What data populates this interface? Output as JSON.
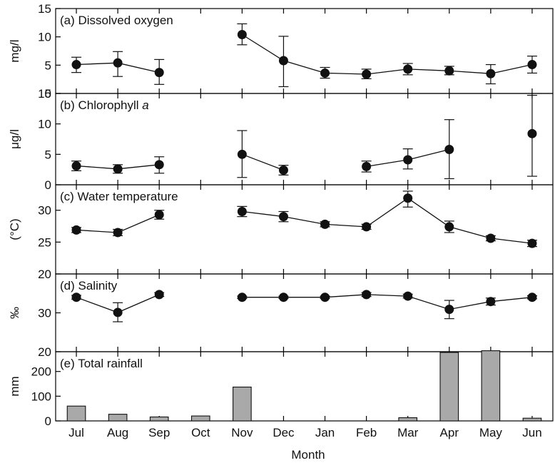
{
  "chart_data": {
    "type": "multi-panel",
    "xlabel": "Month",
    "months": [
      "Jul",
      "Aug",
      "Sep",
      "Oct",
      "Nov",
      "Dec",
      "Jan",
      "Feb",
      "Mar",
      "Apr",
      "May",
      "Jun"
    ],
    "panels": [
      {
        "id": "a",
        "type": "line",
        "title_prefix": "(a) Dissolved oxygen",
        "title_italic": "",
        "ylabel": "mg/l",
        "ylim": [
          0,
          15
        ],
        "yticks": [
          0,
          5,
          10,
          15
        ],
        "segments": [
          [
            0,
            1,
            2
          ],
          [
            4,
            5,
            6,
            7,
            8,
            9,
            10,
            11
          ]
        ],
        "values": [
          5.1,
          5.4,
          3.7,
          null,
          10.4,
          5.8,
          3.6,
          3.4,
          4.3,
          4.0,
          3.5,
          5.1
        ],
        "err_low": [
          3.7,
          3.0,
          1.6,
          null,
          8.6,
          1.2,
          2.7,
          2.6,
          3.3,
          3.3,
          1.7,
          3.6
        ],
        "err_high": [
          6.4,
          7.4,
          6.0,
          null,
          12.3,
          10.1,
          4.6,
          4.3,
          5.3,
          4.8,
          5.1,
          6.6
        ]
      },
      {
        "id": "b",
        "type": "line",
        "title_prefix": "(b) Chlorophyll ",
        "title_italic": "a",
        "ylabel": "μg/l",
        "ylim": [
          0,
          15
        ],
        "yticks": [
          0,
          5,
          10,
          15
        ],
        "segments": [
          [
            0,
            1,
            2
          ],
          [
            4,
            5
          ],
          [
            7,
            8,
            9
          ]
        ],
        "values": [
          3.1,
          2.6,
          3.3,
          null,
          5.0,
          2.4,
          null,
          3.0,
          4.1,
          5.8,
          null,
          8.4
        ],
        "err_low": [
          2.3,
          1.9,
          1.9,
          null,
          1.2,
          1.6,
          null,
          2.1,
          2.6,
          1.0,
          null,
          1.4
        ],
        "err_high": [
          3.9,
          3.3,
          4.6,
          null,
          8.9,
          3.2,
          null,
          3.9,
          5.9,
          10.7,
          null,
          14.7
        ]
      },
      {
        "id": "c",
        "type": "line",
        "title_prefix": "(c) Water temperature",
        "title_italic": "",
        "ylabel": "(°C)",
        "ylim": [
          20,
          34
        ],
        "yticks": [
          20,
          25,
          30
        ],
        "segments": [
          [
            0,
            1,
            2
          ],
          [
            4,
            5,
            6,
            7,
            8,
            9,
            10,
            11
          ]
        ],
        "values": [
          26.9,
          26.5,
          29.3,
          null,
          29.8,
          29.0,
          27.8,
          27.4,
          31.9,
          27.4,
          25.6,
          24.8
        ],
        "err_low": [
          26.5,
          26.0,
          28.6,
          null,
          29.0,
          28.2,
          27.4,
          27.0,
          30.5,
          26.5,
          25.2,
          24.3
        ],
        "err_high": [
          27.3,
          27.0,
          30.0,
          null,
          30.6,
          29.8,
          28.2,
          27.8,
          33.0,
          28.3,
          26.0,
          25.3
        ]
      },
      {
        "id": "d",
        "type": "line",
        "title_prefix": "(d) Salinity",
        "title_italic": "",
        "ylabel": "‰",
        "ylim": [
          20,
          40
        ],
        "yticks": [
          20,
          30
        ],
        "segments": [
          [
            0,
            1,
            2
          ],
          [
            4,
            5,
            6,
            7,
            8,
            9,
            10,
            11
          ]
        ],
        "values": [
          34.0,
          30.1,
          34.7,
          null,
          34.0,
          34.0,
          34.0,
          34.7,
          34.3,
          30.9,
          32.9,
          34.0
        ],
        "err_low": [
          33.5,
          27.7,
          34.2,
          null,
          33.7,
          33.7,
          33.7,
          34.2,
          33.8,
          28.5,
          32.0,
          33.6
        ],
        "err_high": [
          34.5,
          32.6,
          35.2,
          null,
          34.3,
          34.3,
          34.3,
          35.2,
          34.8,
          33.2,
          33.8,
          34.4
        ]
      },
      {
        "id": "e",
        "type": "bar",
        "title_prefix": "(e) Total rainfall",
        "title_italic": "",
        "ylabel": "mm",
        "ylim": [
          0,
          280
        ],
        "yticks": [
          0,
          100,
          200
        ],
        "values": [
          60,
          27,
          16,
          20,
          137,
          0,
          0,
          0,
          13,
          277,
          284,
          11
        ],
        "bar_color": "#a9a9a9"
      }
    ]
  }
}
